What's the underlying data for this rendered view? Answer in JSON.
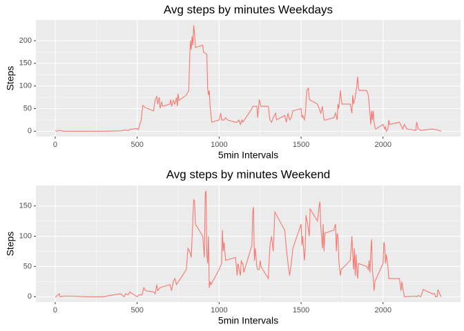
{
  "chart_data": [
    {
      "type": "line",
      "title": "Avg steps by minutes Weekdays",
      "x_label": "5min Intervals",
      "y_label": "Steps",
      "color": "#F8766D",
      "x": [
        0,
        10,
        25,
        50,
        100,
        200,
        300,
        400,
        430,
        445,
        455,
        500,
        505,
        510,
        520,
        525,
        530,
        535,
        550,
        600,
        610,
        620,
        625,
        635,
        640,
        650,
        655,
        700,
        705,
        710,
        720,
        730,
        740,
        745,
        750,
        755,
        800,
        815,
        820,
        825,
        830,
        835,
        840,
        845,
        850,
        855,
        900,
        905,
        925,
        930,
        935,
        940,
        945,
        955,
        1000,
        1010,
        1015,
        1030,
        1040,
        1050,
        1100,
        1110,
        1120,
        1130,
        1140,
        1145,
        1200,
        1205,
        1215,
        1230,
        1235,
        1245,
        1255,
        1300,
        1310,
        1320,
        1330,
        1345,
        1350,
        1400,
        1410,
        1420,
        1430,
        1440,
        1450,
        1500,
        1505,
        1510,
        1520,
        1525,
        1535,
        1545,
        1550,
        1600,
        1610,
        1620,
        1630,
        1640,
        1650,
        1700,
        1710,
        1720,
        1725,
        1730,
        1740,
        1745,
        1750,
        1800,
        1810,
        1815,
        1820,
        1830,
        1840,
        1845,
        1850,
        1855,
        1900,
        1910,
        1915,
        1920,
        1925,
        1930,
        1935,
        1940,
        1945,
        1950,
        1955,
        2000,
        2010,
        2015,
        2020,
        2030,
        2035,
        2040,
        2100,
        2120,
        2130,
        2145,
        2200,
        2205,
        2215,
        2230,
        2300,
        2330,
        2355
      ],
      "values": [
        2,
        0,
        2,
        0,
        0,
        0,
        0,
        1,
        3,
        1,
        4,
        6,
        3,
        8,
        20,
        25,
        45,
        57,
        52,
        45,
        70,
        77,
        60,
        75,
        50,
        65,
        55,
        60,
        70,
        55,
        68,
        60,
        75,
        55,
        83,
        68,
        80,
        90,
        160,
        200,
        180,
        210,
        190,
        234,
        215,
        185,
        190,
        175,
        170,
        95,
        80,
        90,
        55,
        20,
        25,
        40,
        25,
        25,
        30,
        25,
        20,
        20,
        25,
        15,
        25,
        20,
        50,
        55,
        55,
        55,
        30,
        70,
        55,
        55,
        25,
        20,
        30,
        40,
        25,
        35,
        20,
        40,
        25,
        30,
        45,
        50,
        30,
        35,
        25,
        35,
        90,
        95,
        70,
        60,
        50,
        40,
        55,
        25,
        25,
        30,
        40,
        25,
        60,
        50,
        90,
        70,
        60,
        60,
        40,
        80,
        60,
        75,
        100,
        120,
        95,
        90,
        90,
        80,
        60,
        40,
        15,
        45,
        25,
        45,
        20,
        10,
        5,
        15,
        5,
        10,
        0,
        5,
        25,
        15,
        20,
        5,
        15,
        5,
        2,
        20,
        5,
        2,
        5,
        3,
        0
      ],
      "xlim": [
        -117.75,
        2472.75
      ],
      "ylim": [
        -11.7,
        245.7
      ],
      "xticks": [
        0,
        500,
        1000,
        1500,
        2000
      ],
      "yticks": [
        0,
        50,
        100,
        150,
        200
      ],
      "grid": true
    },
    {
      "type": "line",
      "title": "Avg steps by minutes Weekend",
      "x_label": "5min Intervals",
      "y_label": "Steps",
      "color": "#F8766D",
      "x": [
        0,
        5,
        25,
        30,
        50,
        100,
        200,
        300,
        330,
        400,
        410,
        420,
        430,
        445,
        455,
        500,
        510,
        530,
        540,
        550,
        600,
        610,
        620,
        625,
        640,
        700,
        710,
        720,
        730,
        740,
        800,
        810,
        820,
        830,
        840,
        845,
        850,
        855,
        900,
        910,
        915,
        920,
        925,
        930,
        935,
        940,
        945,
        950,
        1000,
        1015,
        1020,
        1025,
        1030,
        1040,
        1100,
        1110,
        1115,
        1130,
        1135,
        1140,
        1145,
        1150,
        1200,
        1205,
        1210,
        1215,
        1220,
        1230,
        1235,
        1245,
        1250,
        1255,
        1300,
        1310,
        1320,
        1330,
        1340,
        1400,
        1410,
        1420,
        1430,
        1440,
        1450,
        1500,
        1505,
        1510,
        1520,
        1525,
        1530,
        1540,
        1550,
        1555,
        1600,
        1610,
        1615,
        1620,
        1625,
        1630,
        1635,
        1640,
        1645,
        1700,
        1710,
        1715,
        1720,
        1725,
        1730,
        1740,
        1745,
        1800,
        1810,
        1820,
        1825,
        1830,
        1835,
        1840,
        1845,
        1850,
        1900,
        1910,
        1915,
        1920,
        1925,
        1930,
        1935,
        1940,
        1945,
        1950,
        2000,
        2005,
        2010,
        2015,
        2020,
        2030,
        2035,
        2100,
        2110,
        2115,
        2120,
        2130,
        2200,
        2205,
        2215,
        2230,
        2245,
        2300,
        2315,
        2320,
        2330,
        2335,
        2345,
        2355
      ],
      "values": [
        0,
        0,
        5,
        0,
        1,
        1,
        0,
        0,
        2,
        5,
        2,
        0,
        5,
        3,
        8,
        0,
        3,
        3,
        15,
        10,
        8,
        5,
        20,
        10,
        15,
        20,
        10,
        25,
        30,
        20,
        45,
        80,
        75,
        65,
        130,
        160,
        158,
        120,
        100,
        65,
        170,
        175,
        70,
        55,
        100,
        15,
        25,
        20,
        45,
        55,
        110,
        75,
        90,
        60,
        65,
        35,
        55,
        35,
        60,
        55,
        55,
        40,
        85,
        140,
        148,
        60,
        80,
        50,
        45,
        45,
        60,
        50,
        30,
        85,
        100,
        75,
        140,
        110,
        80,
        55,
        35,
        55,
        80,
        120,
        85,
        100,
        60,
        80,
        135,
        120,
        100,
        145,
        125,
        150,
        157,
        115,
        100,
        80,
        120,
        75,
        105,
        110,
        120,
        75,
        105,
        100,
        60,
        35,
        45,
        60,
        100,
        45,
        80,
        35,
        70,
        45,
        30,
        55,
        50,
        45,
        60,
        40,
        75,
        95,
        45,
        30,
        10,
        25,
        55,
        90,
        85,
        55,
        70,
        50,
        30,
        30,
        10,
        25,
        15,
        0,
        1,
        0,
        2,
        0,
        12,
        5,
        5,
        0,
        0,
        12,
        5,
        0
      ],
      "xlim": [
        -117.75,
        2472.75
      ],
      "ylim": [
        -8.75,
        183.75
      ],
      "xticks": [
        0,
        500,
        1000,
        1500,
        2000
      ],
      "yticks": [
        0,
        50,
        100,
        150
      ],
      "grid": true
    }
  ]
}
